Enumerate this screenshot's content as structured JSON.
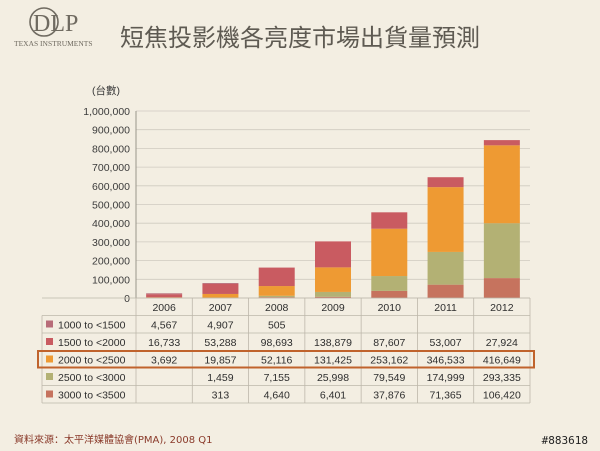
{
  "logo": {
    "brand": "DLP",
    "company": "TEXAS INSTRUMENTS"
  },
  "title": "短焦投影機各亮度市場出貨量預測",
  "source": "資料來源：太平洋媒體協會(PMA), 2008 Q1",
  "watermark": "#883618",
  "colors": {
    "s1000": "#b86c79",
    "s1500": "#c95b61",
    "s2000": "#ee9a33",
    "s2500": "#b3b174",
    "s3000": "#c6735e",
    "highlight": "#c0632c",
    "gridline": "#cfcac0"
  },
  "chart_data": {
    "type": "bar",
    "stacked": true,
    "ylabel": "(台數)",
    "ylim": [
      0,
      1000000
    ],
    "yticks": [
      "0",
      "100,000",
      "200,000",
      "300,000",
      "400,000",
      "500,000",
      "600,000",
      "700,000",
      "800,000",
      "900,000",
      "1,000,000"
    ],
    "categories": [
      "2006",
      "2007",
      "2008",
      "2009",
      "2010",
      "2011",
      "2012"
    ],
    "series": [
      {
        "name": "1000 to <1500",
        "color_key": "s1000",
        "values": [
          4567,
          4907,
          505,
          null,
          null,
          null,
          null
        ],
        "labels": [
          "4,567",
          "4,907",
          "505",
          "",
          "",
          "",
          ""
        ]
      },
      {
        "name": "1500 to <2000",
        "color_key": "s1500",
        "values": [
          16733,
          53288,
          98693,
          138879,
          87607,
          53007,
          27924
        ],
        "labels": [
          "16,733",
          "53,288",
          "98,693",
          "138,879",
          "87,607",
          "53,007",
          "27,924"
        ]
      },
      {
        "name": "2000 to <2500",
        "color_key": "s2000",
        "values": [
          3692,
          19857,
          52116,
          131425,
          253162,
          346533,
          416649
        ],
        "labels": [
          "3,692",
          "19,857",
          "52,116",
          "131,425",
          "253,162",
          "346,533",
          "416,649"
        ],
        "highlight": true
      },
      {
        "name": "2500 to <3000",
        "color_key": "s2500",
        "values": [
          null,
          1459,
          7155,
          25998,
          79549,
          174999,
          293335
        ],
        "labels": [
          "",
          "1,459",
          "7,155",
          "25,998",
          "79,549",
          "174,999",
          "293,335"
        ]
      },
      {
        "name": "3000 to <3500",
        "color_key": "s3000",
        "values": [
          null,
          313,
          4640,
          6401,
          37876,
          71365,
          106420
        ],
        "labels": [
          "",
          "313",
          "4,640",
          "6,401",
          "37,876",
          "71,365",
          "106,420"
        ]
      }
    ]
  }
}
